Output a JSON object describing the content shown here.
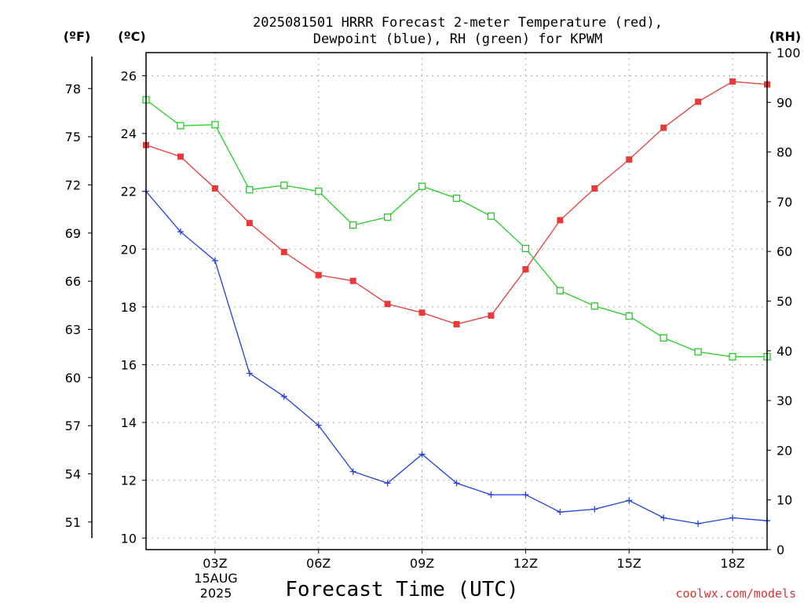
{
  "chart_data": {
    "type": "line",
    "title_line1": "2025081501 HRRR Forecast 2-meter Temperature (red),",
    "title_line2": "Dewpoint (blue), RH (green) for KPWM",
    "xlabel": "Forecast Time (UTC)",
    "date_label_1": "15AUG",
    "date_label_2": "2025",
    "credit": "coolwx.com/models",
    "units": {
      "fahrenheit": "(ºF)",
      "celsius": "(ºC)",
      "rh": "(RH)"
    },
    "x_hours": [
      1,
      2,
      3,
      4,
      5,
      6,
      7,
      8,
      9,
      10,
      11,
      12,
      13,
      14,
      15,
      16,
      17,
      18,
      19
    ],
    "x_ticks": [
      {
        "hour": 3,
        "label": "03Z"
      },
      {
        "hour": 6,
        "label": "06Z"
      },
      {
        "hour": 9,
        "label": "09Z"
      },
      {
        "hour": 12,
        "label": "12Z"
      },
      {
        "hour": 15,
        "label": "15Z"
      },
      {
        "hour": 18,
        "label": "18Z"
      }
    ],
    "xlim": [
      1,
      19
    ],
    "celsius_ylim": [
      9.6,
      26.8
    ],
    "celsius_ticks": [
      10,
      12,
      14,
      16,
      18,
      20,
      22,
      24,
      26
    ],
    "fahrenheit_ticks": [
      51,
      54,
      57,
      60,
      63,
      66,
      69,
      72,
      75,
      78
    ],
    "rh_ylim": [
      0,
      100
    ],
    "rh_ticks": [
      0,
      10,
      20,
      30,
      40,
      50,
      60,
      70,
      80,
      90,
      100
    ],
    "series": [
      {
        "name": "Temperature",
        "axis": "celsius",
        "color": "#e83a3a",
        "marker": "filled-square",
        "values": [
          23.6,
          23.2,
          22.1,
          20.9,
          19.9,
          19.1,
          18.9,
          18.1,
          17.8,
          17.4,
          17.7,
          19.3,
          21.0,
          22.1,
          23.1,
          24.2,
          25.1,
          25.8,
          25.7
        ]
      },
      {
        "name": "Dewpoint",
        "axis": "celsius",
        "color": "#2040e0",
        "marker": "plus",
        "values": [
          22.0,
          20.6,
          19.6,
          15.7,
          14.9,
          13.9,
          12.3,
          11.9,
          12.9,
          11.9,
          11.5,
          11.5,
          10.9,
          11.0,
          11.3,
          10.7,
          10.5,
          10.7,
          10.6
        ]
      },
      {
        "name": "RH",
        "axis": "rh",
        "color": "#20d020",
        "marker": "open-square",
        "values": [
          90.5,
          85.3,
          85.5,
          72.4,
          73.3,
          72.1,
          65.3,
          66.9,
          73.1,
          70.7,
          67.1,
          60.6,
          52.1,
          49.0,
          47.0,
          42.6,
          39.8,
          38.8,
          38.8
        ]
      }
    ]
  }
}
